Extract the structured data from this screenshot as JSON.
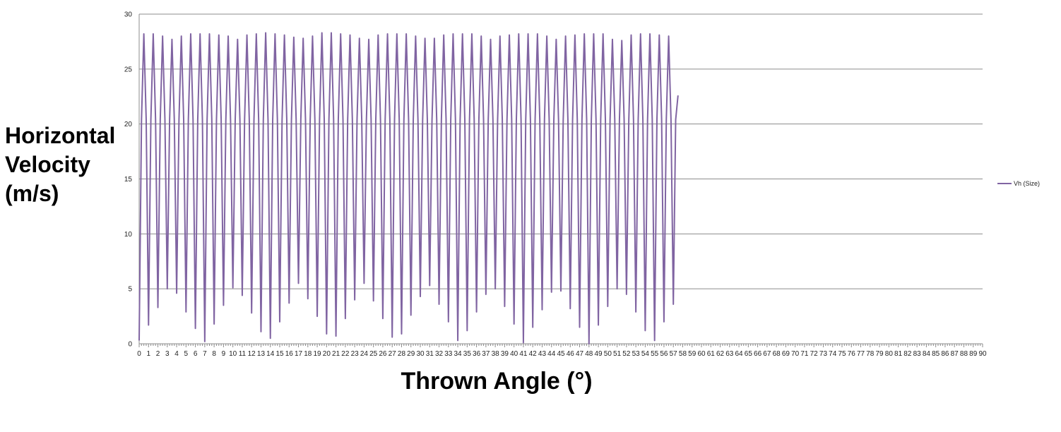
{
  "chart_data": {
    "type": "line",
    "title": "",
    "xlabel": "Thrown Angle (°)",
    "ylabel_lines": [
      "Horizontal",
      "Velocity",
      "(m/s)"
    ],
    "xlim": [
      0,
      90
    ],
    "ylim": [
      0,
      30
    ],
    "x_step": 0.25,
    "y_ticks": [
      "0",
      "5",
      "10",
      "15",
      "20",
      "25",
      "30"
    ],
    "x_ticks": [
      "0",
      "1",
      "2",
      "3",
      "4",
      "5",
      "6",
      "7",
      "8",
      "9",
      "10",
      "11",
      "12",
      "13",
      "14",
      "15",
      "16",
      "17",
      "18",
      "19",
      "20",
      "21",
      "22",
      "23",
      "24",
      "25",
      "26",
      "27",
      "28",
      "29",
      "30",
      "31",
      "32",
      "33",
      "34",
      "35",
      "36",
      "37",
      "38",
      "39",
      "40",
      "41",
      "42",
      "43",
      "44",
      "45",
      "46",
      "47",
      "48",
      "49",
      "50",
      "51",
      "52",
      "53",
      "54",
      "55",
      "56",
      "57",
      "58",
      "59",
      "60",
      "61",
      "62",
      "63",
      "64",
      "65",
      "66",
      "67",
      "68",
      "69",
      "70",
      "71",
      "72",
      "73",
      "74",
      "75",
      "76",
      "77",
      "78",
      "79",
      "80",
      "81",
      "82",
      "83",
      "84",
      "85",
      "86",
      "87",
      "88",
      "89",
      "90"
    ],
    "grid": true,
    "legend_position": "right",
    "series": [
      {
        "name": "Vh (Size)",
        "color": "#8064A2",
        "values": [
          0.3,
          20.4,
          28.2,
          20.4,
          1.7,
          20.4,
          28.2,
          20.4,
          3.3,
          20.4,
          28.0,
          20.4,
          5.0,
          20.4,
          27.7,
          20.4,
          4.6,
          20.4,
          28.0,
          20.4,
          2.9,
          20.4,
          28.2,
          20.4,
          1.4,
          20.4,
          28.2,
          20.4,
          0.2,
          20.4,
          28.2,
          20.4,
          1.8,
          20.4,
          28.1,
          20.4,
          3.5,
          20.4,
          28.0,
          20.4,
          5.1,
          20.4,
          27.7,
          20.4,
          4.4,
          20.4,
          28.1,
          20.4,
          2.8,
          20.4,
          28.2,
          20.4,
          1.1,
          20.4,
          28.3,
          20.4,
          0.5,
          20.4,
          28.2,
          20.4,
          2.0,
          20.4,
          28.1,
          20.4,
          3.7,
          20.4,
          27.9,
          20.4,
          5.5,
          20.4,
          27.8,
          20.4,
          4.1,
          20.4,
          28.0,
          20.4,
          2.5,
          20.4,
          28.3,
          20.4,
          0.9,
          20.4,
          28.3,
          20.4,
          0.7,
          20.4,
          28.2,
          20.4,
          2.3,
          20.4,
          28.1,
          20.4,
          4.0,
          20.4,
          27.8,
          20.4,
          5.5,
          20.4,
          27.7,
          20.4,
          3.9,
          20.4,
          28.1,
          20.4,
          2.3,
          20.4,
          28.2,
          20.4,
          0.6,
          20.4,
          28.2,
          20.4,
          0.9,
          20.4,
          28.2,
          20.4,
          2.6,
          20.4,
          28.0,
          20.4,
          4.3,
          20.4,
          27.8,
          20.4,
          5.3,
          20.4,
          27.8,
          20.4,
          3.6,
          20.4,
          28.1,
          20.4,
          2.0,
          20.4,
          28.2,
          20.4,
          0.3,
          20.4,
          28.2,
          20.4,
          1.2,
          20.4,
          28.2,
          20.4,
          2.9,
          20.4,
          28.0,
          20.4,
          4.5,
          20.4,
          27.7,
          20.4,
          5.0,
          20.4,
          28.0,
          20.4,
          3.4,
          20.4,
          28.1,
          20.4,
          1.8,
          20.4,
          28.2,
          20.4,
          0.1,
          20.4,
          28.2,
          20.4,
          1.5,
          20.4,
          28.2,
          20.4,
          3.1,
          20.4,
          28.0,
          20.4,
          4.7,
          20.4,
          27.7,
          20.4,
          4.8,
          20.4,
          28.0,
          20.4,
          3.2,
          20.4,
          28.1,
          20.4,
          1.5,
          20.4,
          28.2,
          20.4,
          0.0,
          20.4,
          28.2,
          20.4,
          1.7,
          20.4,
          28.2,
          20.4,
          3.4,
          20.4,
          27.7,
          20.4,
          5.0,
          20.4,
          27.6,
          20.4,
          4.5,
          20.4,
          28.1,
          20.4,
          2.9,
          20.4,
          28.2,
          20.4,
          1.2,
          20.4,
          28.2,
          20.4,
          0.3,
          20.4,
          28.1,
          20.4,
          2.0,
          20.4,
          28.0,
          20.4,
          3.6,
          20.4,
          22.6
        ]
      }
    ]
  }
}
